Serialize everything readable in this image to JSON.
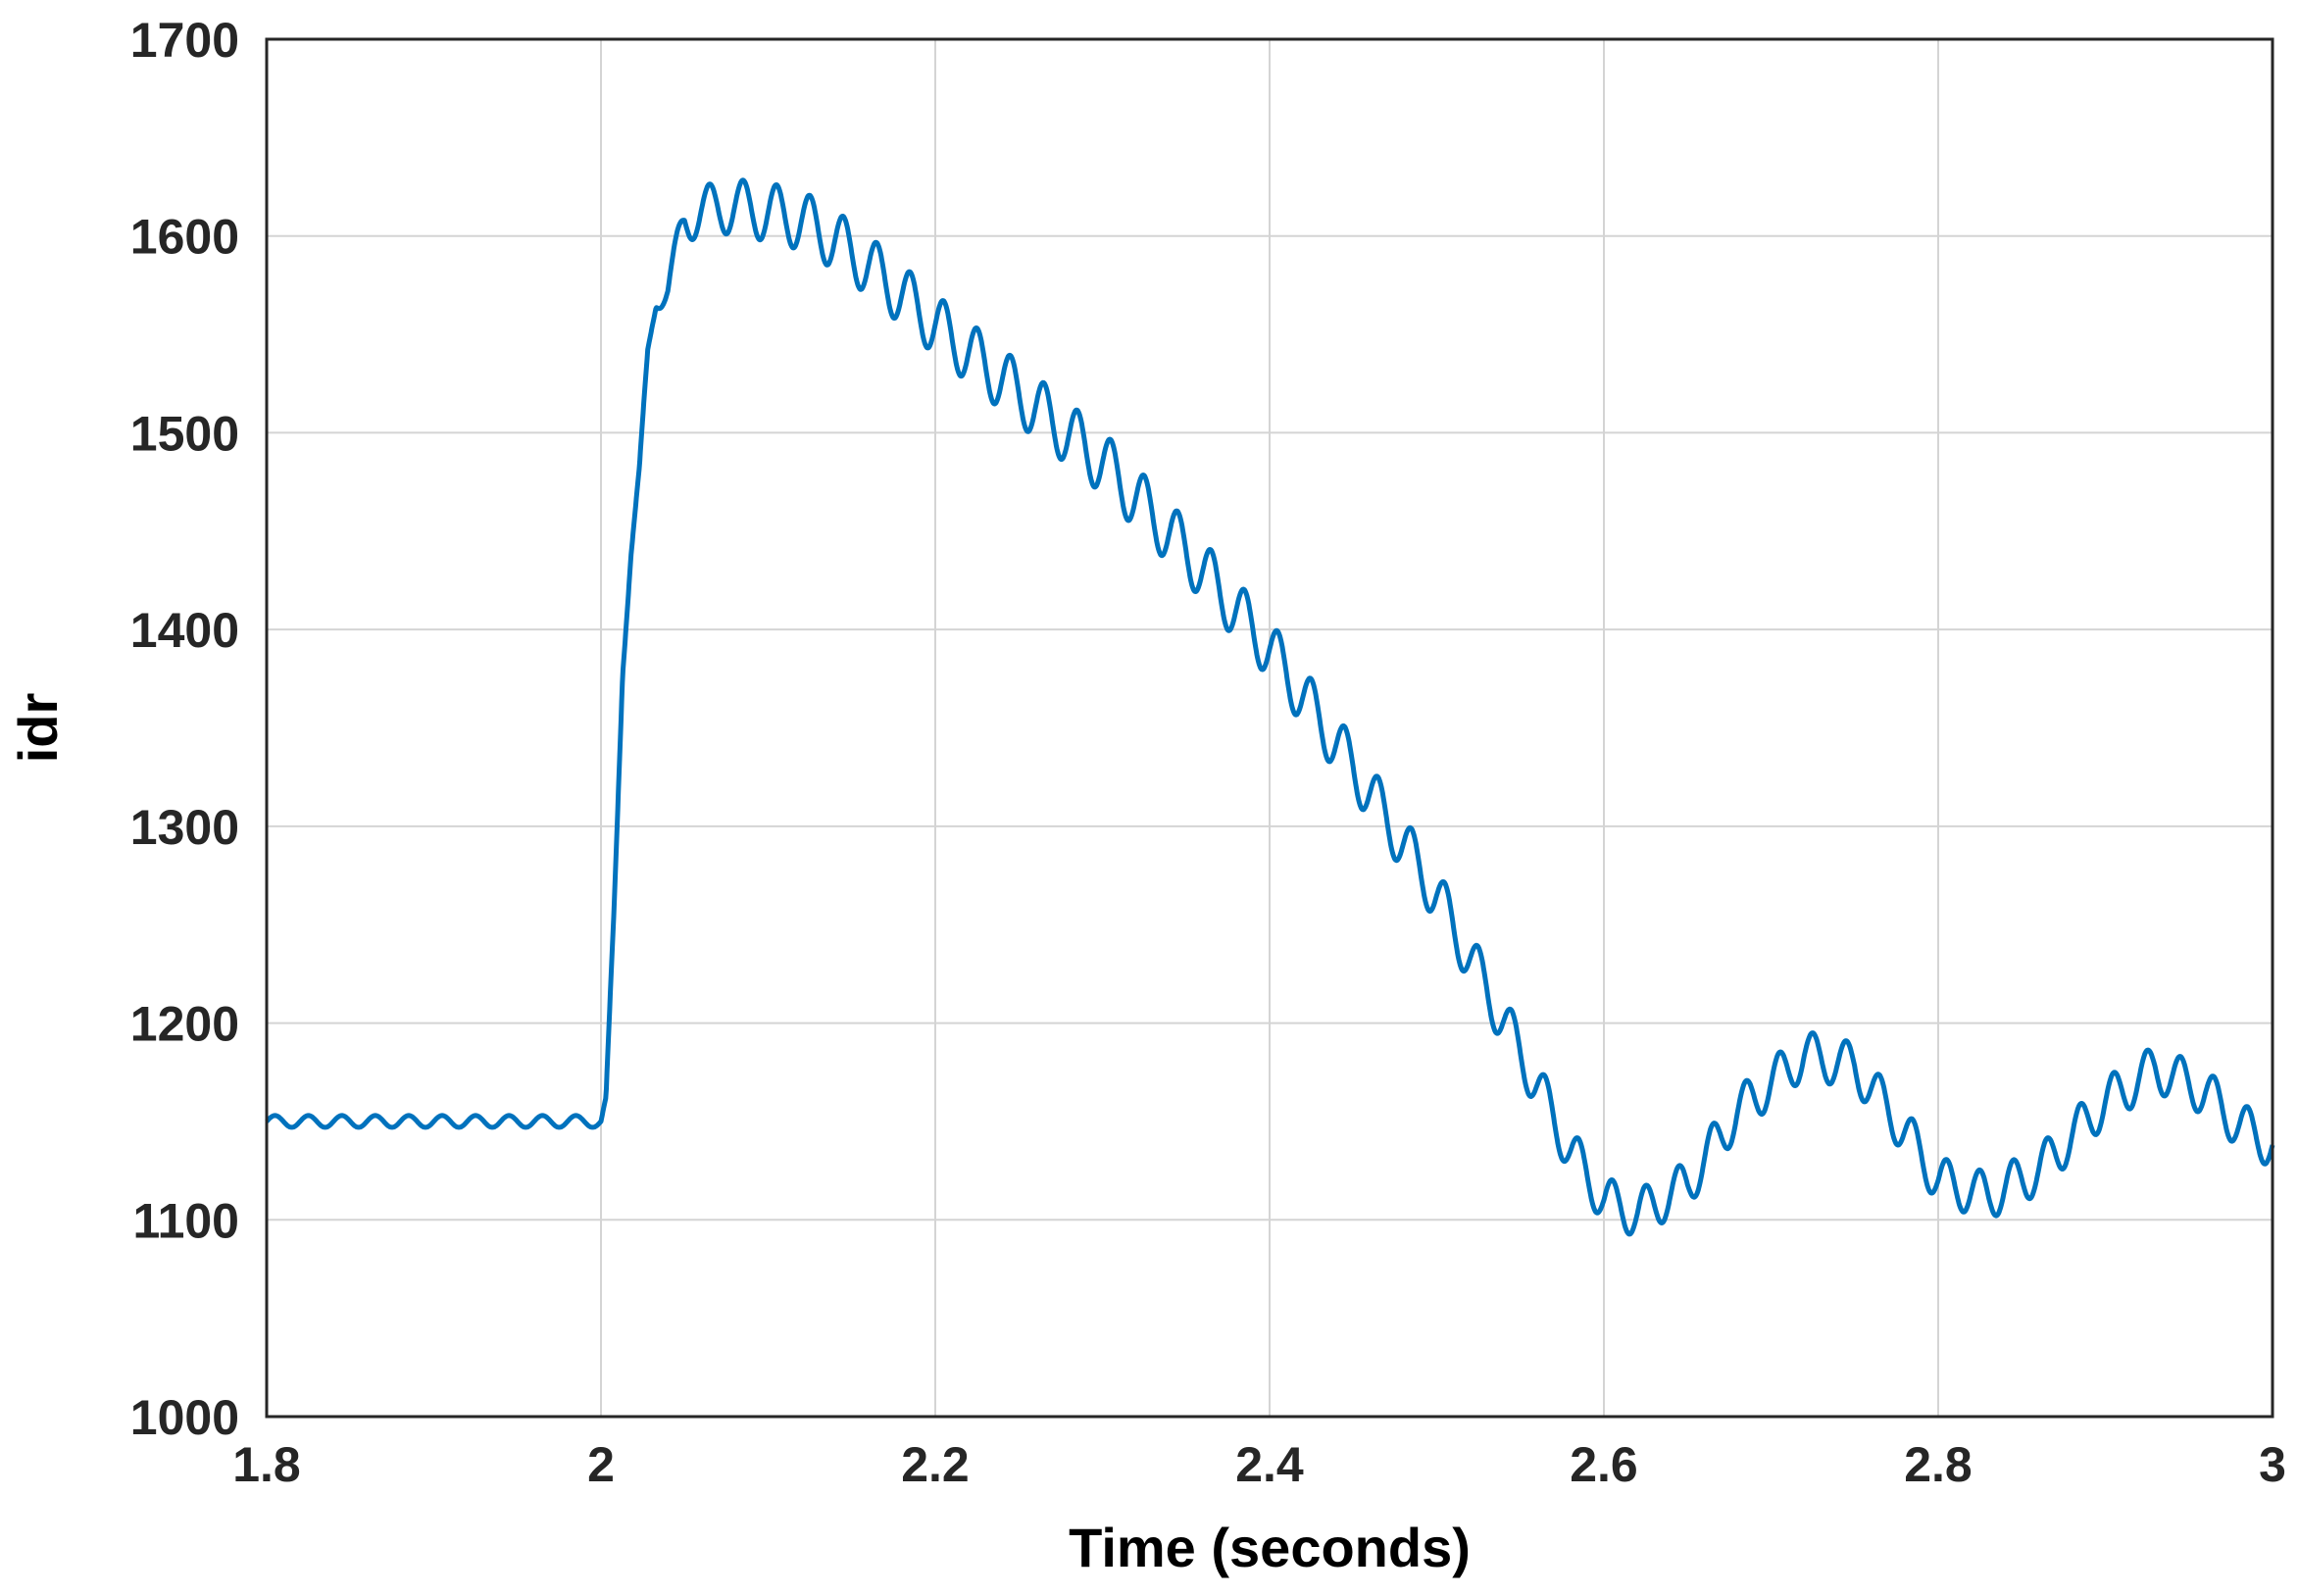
{
  "chart_data": {
    "type": "line",
    "title": "",
    "xlabel": "Time (seconds)",
    "ylabel": "idr",
    "xlim": [
      1.8,
      3.0
    ],
    "ylim": [
      1000,
      1700
    ],
    "xticks": [
      1.8,
      2.0,
      2.2,
      2.4,
      2.6,
      2.8,
      3.0
    ],
    "xtick_labels": [
      "1.8",
      "2",
      "2.2",
      "2.4",
      "2.6",
      "2.8",
      "3"
    ],
    "yticks": [
      1000,
      1100,
      1200,
      1300,
      1400,
      1500,
      1600,
      1700
    ],
    "ytick_labels": [
      "1000",
      "1100",
      "1200",
      "1300",
      "1400",
      "1500",
      "1600",
      "1700"
    ],
    "grid": true,
    "line_color": "#0072BD",
    "series": [
      {
        "name": "",
        "ripple_frequency_hz": 50,
        "ripple_amplitude": [
          [
            1.8,
            3
          ],
          [
            2.0,
            3
          ],
          [
            2.01,
            3
          ],
          [
            2.03,
            4
          ],
          [
            2.05,
            12
          ],
          [
            2.1,
            15
          ],
          [
            2.3,
            16
          ],
          [
            2.5,
            14
          ],
          [
            2.6,
            12
          ],
          [
            3.0,
            12
          ]
        ],
        "envelope": [
          [
            1.8,
            1150
          ],
          [
            2.0,
            1150
          ],
          [
            2.003,
            1160
          ],
          [
            2.008,
            1260
          ],
          [
            2.013,
            1380
          ],
          [
            2.018,
            1440
          ],
          [
            2.023,
            1480
          ],
          [
            2.028,
            1540
          ],
          [
            2.033,
            1568
          ],
          [
            2.04,
            1572
          ],
          [
            2.045,
            1590
          ],
          [
            2.05,
            1608
          ],
          [
            2.06,
            1613
          ],
          [
            2.08,
            1615
          ],
          [
            2.1,
            1612
          ],
          [
            2.12,
            1608
          ],
          [
            2.14,
            1598
          ],
          [
            2.16,
            1585
          ],
          [
            2.18,
            1570
          ],
          [
            2.2,
            1555
          ],
          [
            2.25,
            1520
          ],
          [
            2.3,
            1485
          ],
          [
            2.35,
            1440
          ],
          [
            2.4,
            1390
          ],
          [
            2.45,
            1330
          ],
          [
            2.5,
            1265
          ],
          [
            2.55,
            1185
          ],
          [
            2.58,
            1135
          ],
          [
            2.6,
            1110
          ],
          [
            2.62,
            1103
          ],
          [
            2.65,
            1118
          ],
          [
            2.68,
            1155
          ],
          [
            2.72,
            1184
          ],
          [
            2.75,
            1178
          ],
          [
            2.78,
            1145
          ],
          [
            2.8,
            1120
          ],
          [
            2.83,
            1112
          ],
          [
            2.86,
            1125
          ],
          [
            2.9,
            1160
          ],
          [
            2.93,
            1177
          ],
          [
            2.96,
            1165
          ],
          [
            2.98,
            1148
          ],
          [
            3.0,
            1138
          ]
        ]
      }
    ]
  }
}
